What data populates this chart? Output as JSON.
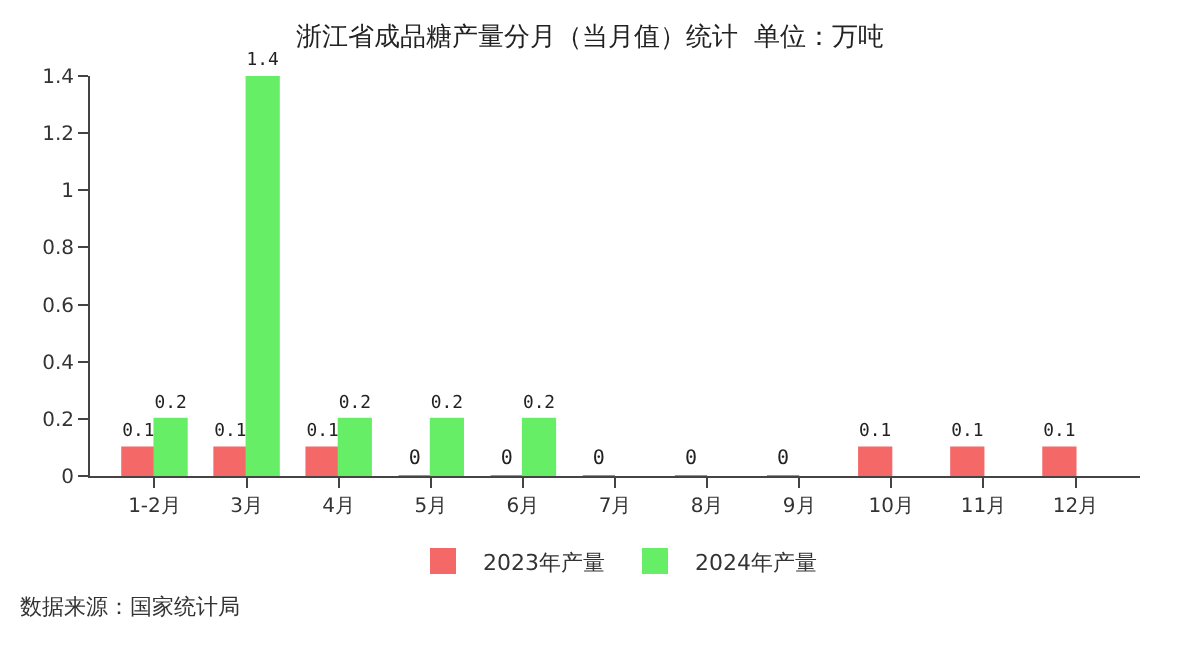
{
  "chart_data": {
    "type": "bar",
    "title": "浙江省成品糖产量分月（当月值）统计  单位：万吨",
    "categories": [
      "1-2月",
      "3月",
      "4月",
      "5月",
      "6月",
      "7月",
      "8月",
      "9月",
      "10月",
      "11月",
      "12月"
    ],
    "series": [
      {
        "name": "2023年产量",
        "color": "#f46868",
        "values": [
          0.1,
          0.1,
          0.1,
          0,
          0,
          0,
          0,
          0,
          0.1,
          0.1,
          0.1
        ]
      },
      {
        "name": "2024年产量",
        "color": "#66ee66",
        "values": [
          0.2,
          1.4,
          0.2,
          0.2,
          0.2,
          null,
          null,
          null,
          null,
          null,
          null
        ]
      }
    ],
    "ylim": [
      0,
      1.4
    ],
    "yticks": [
      0,
      0.2,
      0.4,
      0.6,
      0.8,
      1,
      1.2,
      1.4
    ],
    "data_labels": true,
    "legend": "bottom",
    "annotations": [
      "数据来源：国家统计局"
    ]
  }
}
